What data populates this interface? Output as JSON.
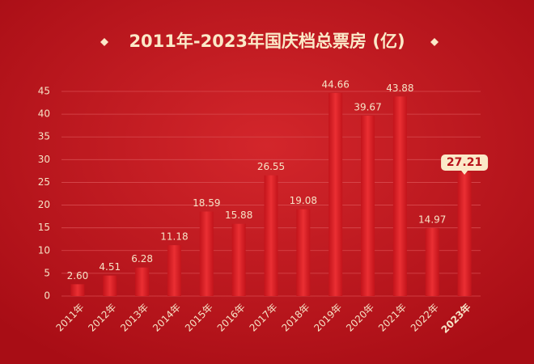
{
  "chart_data": {
    "type": "bar",
    "title": "2011年-2023年国庆档总票房 (亿)",
    "categories": [
      "2011年",
      "2012年",
      "2013年",
      "2014年",
      "2015年",
      "2016年",
      "2017年",
      "2018年",
      "2019年",
      "2020年",
      "2021年",
      "2022年",
      "2023年"
    ],
    "values": [
      2.6,
      4.51,
      6.28,
      11.18,
      18.59,
      15.88,
      26.55,
      19.08,
      44.66,
      39.67,
      43.88,
      14.97,
      27.21
    ],
    "value_labels": [
      "2.60",
      "4.51",
      "6.28",
      "11.18",
      "18.59",
      "15.88",
      "26.55",
      "19.08",
      "44.66",
      "39.67",
      "43.88",
      "14.97",
      "27.21"
    ],
    "color": "#e3252b",
    "highlight": 12,
    "ylim": [
      0,
      45
    ],
    "yticks": [
      0,
      5,
      10,
      15,
      20,
      25,
      30,
      35,
      40,
      45
    ],
    "grid": true
  }
}
